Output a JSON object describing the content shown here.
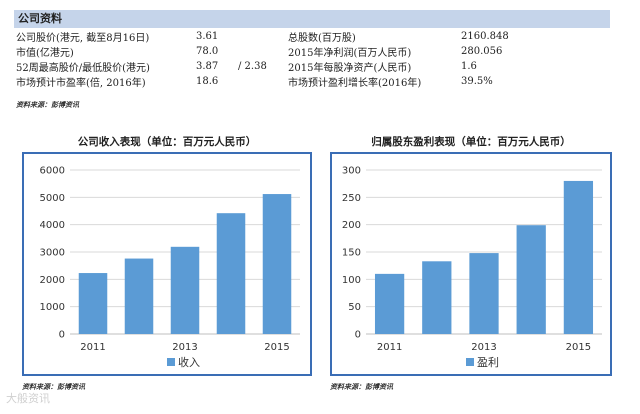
{
  "section": {
    "title": "公司资料"
  },
  "info_rows": [
    {
      "label1": "公司股价(港元, 截至8月16日)",
      "value1": "3.61",
      "extra": "",
      "label2": "总股数(百万股)",
      "value2": "2160.848"
    },
    {
      "label1": "市值(亿港元)",
      "value1": "78.0",
      "extra": "",
      "label2": "2015年净利润(百万人民币)",
      "value2": "280.056"
    },
    {
      "label1": "52周最高股价/最低股价(港元)",
      "value1": "3.87",
      "extra": "/ 2.38",
      "label2": "2015年每股净资产(人民币)",
      "value2": "1.6"
    },
    {
      "label1": "市场预计市盈率(倍, 2016年)",
      "value1": "18.6",
      "extra": "",
      "label2": "市场预计盈利增长率(2016年)",
      "value2": "39.5%"
    }
  ],
  "source_text": "资料来源：彭博资讯",
  "watermark": "大般资讯",
  "chart_data": [
    {
      "type": "bar",
      "title": "公司收入表现（单位：百万元人民币）",
      "categories": [
        "2011",
        "2012",
        "2013",
        "2014",
        "2015"
      ],
      "tick_labels": [
        "2011",
        "",
        "2013",
        "",
        "2015"
      ],
      "series": [
        {
          "name": "收入",
          "values": [
            2230,
            2760,
            3190,
            4420,
            5120
          ]
        }
      ],
      "ylim": [
        0,
        6000
      ],
      "yticks": [
        0,
        1000,
        2000,
        3000,
        4000,
        5000,
        6000
      ],
      "grid": true,
      "legend": "bottom",
      "color": "#5b9bd5"
    },
    {
      "type": "bar",
      "title": "归属股东盈利表现（单位：百万元人民币）",
      "categories": [
        "2011",
        "2012",
        "2013",
        "2014",
        "2015"
      ],
      "tick_labels": [
        "2011",
        "",
        "2013",
        "",
        "2015"
      ],
      "series": [
        {
          "name": "盈利",
          "values": [
            110,
            133,
            148,
            199,
            280
          ]
        }
      ],
      "ylim": [
        0,
        300
      ],
      "yticks": [
        0,
        50,
        100,
        150,
        200,
        250,
        300
      ],
      "grid": true,
      "legend": "bottom",
      "color": "#5b9bd5"
    }
  ]
}
